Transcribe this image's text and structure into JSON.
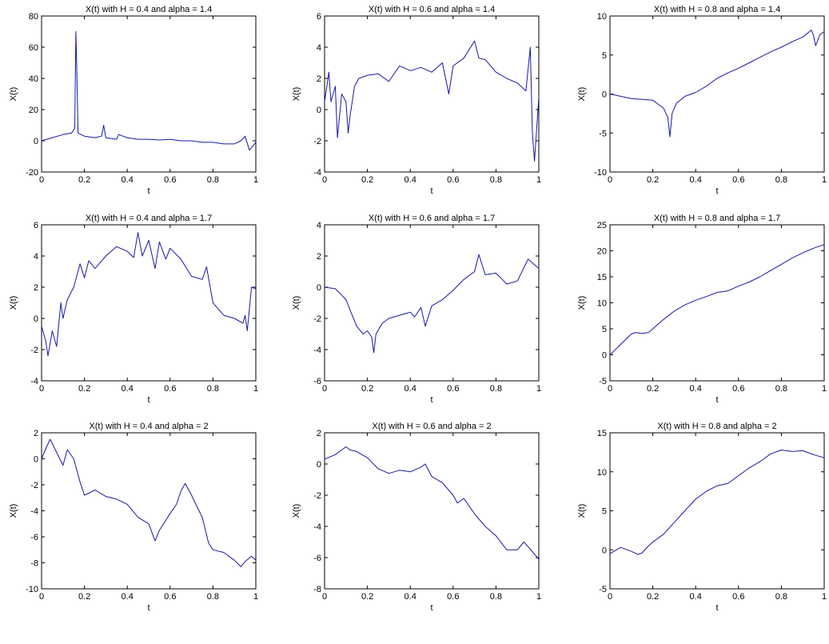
{
  "colors": {
    "line": "#1616a8",
    "axes": "#000000",
    "background": "#ffffff"
  },
  "chart_data": [
    {
      "type": "line",
      "title": "X(t) with H = 0.4 and alpha = 1.4",
      "xlabel": "t",
      "ylabel": "X(t)",
      "xlim": [
        0,
        1
      ],
      "ylim": [
        -20,
        80
      ],
      "xticks": [
        "0",
        "0.2",
        "0.4",
        "0.6",
        "0.8",
        "1"
      ],
      "yticks": [
        "-20",
        "0",
        "20",
        "40",
        "60",
        "80"
      ],
      "grid": false,
      "legend": "none",
      "series": [
        {
          "x": [
            0,
            0.05,
            0.1,
            0.14,
            0.155,
            0.16,
            0.165,
            0.17,
            0.2,
            0.25,
            0.28,
            0.29,
            0.3,
            0.35,
            0.36,
            0.4,
            0.45,
            0.5,
            0.55,
            0.6,
            0.65,
            0.7,
            0.75,
            0.8,
            0.85,
            0.9,
            0.93,
            0.95,
            0.97,
            1.0
          ],
          "y": [
            0,
            2,
            4,
            5,
            8,
            70,
            42,
            5,
            3,
            2,
            3,
            10,
            2,
            1,
            4,
            2,
            1,
            1,
            0.5,
            1,
            0,
            0,
            -1,
            -1,
            -2,
            -2,
            0,
            3,
            -6,
            -1
          ]
        }
      ]
    },
    {
      "type": "line",
      "title": "X(t) with H = 0.6 and alpha = 1.4",
      "xlabel": "t",
      "ylabel": "X(t)",
      "xlim": [
        0,
        1
      ],
      "ylim": [
        -4,
        6
      ],
      "xticks": [
        "0",
        "0.2",
        "0.4",
        "0.6",
        "0.8",
        "1"
      ],
      "yticks": [
        "-4",
        "-2",
        "0",
        "2",
        "4",
        "6"
      ],
      "grid": false,
      "legend": "none",
      "series": [
        {
          "x": [
            0,
            0.02,
            0.03,
            0.05,
            0.06,
            0.08,
            0.1,
            0.11,
            0.12,
            0.14,
            0.16,
            0.2,
            0.25,
            0.3,
            0.35,
            0.4,
            0.45,
            0.5,
            0.55,
            0.58,
            0.6,
            0.65,
            0.7,
            0.72,
            0.75,
            0.8,
            0.85,
            0.9,
            0.94,
            0.96,
            0.97,
            0.98,
            1.0
          ],
          "y": [
            0.5,
            2.4,
            0.5,
            1.5,
            -1.8,
            1,
            0.5,
            -1.5,
            -0.3,
            1.5,
            2,
            2.2,
            2.3,
            1.8,
            2.8,
            2.5,
            2.7,
            2.4,
            3,
            1,
            2.8,
            3.3,
            4.4,
            3.3,
            3.2,
            2.4,
            2,
            1.7,
            1.2,
            4,
            -1.5,
            -3.3,
            0.8
          ]
        }
      ]
    },
    {
      "type": "line",
      "title": "X(t) with H = 0.8 and alpha = 1.4",
      "xlabel": "t",
      "ylabel": "X(t)",
      "xlim": [
        0,
        1
      ],
      "ylim": [
        -10,
        10
      ],
      "xticks": [
        "0",
        "0.2",
        "0.4",
        "0.6",
        "0.8",
        "1"
      ],
      "yticks": [
        "-10",
        "-5",
        "0",
        "5",
        "10"
      ],
      "grid": false,
      "legend": "none",
      "series": [
        {
          "x": [
            0,
            0.1,
            0.2,
            0.25,
            0.27,
            0.28,
            0.29,
            0.31,
            0.35,
            0.4,
            0.45,
            0.5,
            0.55,
            0.6,
            0.65,
            0.7,
            0.75,
            0.8,
            0.85,
            0.9,
            0.94,
            0.95,
            0.96,
            0.98,
            1.0
          ],
          "y": [
            0,
            -0.6,
            -0.8,
            -1.8,
            -3,
            -5.5,
            -2.5,
            -1.2,
            -0.3,
            0.2,
            1,
            2,
            2.7,
            3.3,
            4,
            4.7,
            5.4,
            6,
            6.7,
            7.3,
            8.2,
            7.5,
            6.2,
            7.6,
            8
          ]
        }
      ]
    },
    {
      "type": "line",
      "title": "X(t) with H = 0.4 and alpha = 1.7",
      "xlabel": "t",
      "ylabel": "X(t)",
      "xlim": [
        0,
        1
      ],
      "ylim": [
        -4,
        6
      ],
      "xticks": [
        "0",
        "0.2",
        "0.4",
        "0.6",
        "0.8",
        "1"
      ],
      "yticks": [
        "-4",
        "-2",
        "0",
        "2",
        "4",
        "6"
      ],
      "grid": false,
      "legend": "none",
      "series": [
        {
          "x": [
            0,
            0.02,
            0.03,
            0.05,
            0.07,
            0.09,
            0.1,
            0.12,
            0.15,
            0.18,
            0.2,
            0.22,
            0.25,
            0.3,
            0.35,
            0.4,
            0.43,
            0.45,
            0.47,
            0.5,
            0.53,
            0.55,
            0.58,
            0.6,
            0.65,
            0.7,
            0.75,
            0.77,
            0.8,
            0.85,
            0.9,
            0.94,
            0.95,
            0.96,
            0.98,
            1.0
          ],
          "y": [
            -0.5,
            -1.5,
            -2.4,
            -0.8,
            -1.8,
            1,
            0,
            1.2,
            2,
            3.5,
            2.6,
            3.7,
            3.2,
            4,
            4.6,
            4.3,
            3.9,
            5.5,
            4,
            5,
            3.2,
            4.9,
            3.8,
            4.5,
            3.8,
            2.7,
            2.5,
            3.3,
            1,
            0.2,
            0,
            -0.3,
            0.2,
            -0.8,
            2,
            1.9
          ]
        }
      ]
    },
    {
      "type": "line",
      "title": "X(t) with H = 0.6 and alpha = 1.7",
      "xlabel": "t",
      "ylabel": "X(t)",
      "xlim": [
        0,
        1
      ],
      "ylim": [
        -6,
        4
      ],
      "xticks": [
        "0",
        "0.2",
        "0.4",
        "0.6",
        "0.8",
        "1"
      ],
      "yticks": [
        "-6",
        "-4",
        "-2",
        "0",
        "2",
        "4"
      ],
      "grid": false,
      "legend": "none",
      "series": [
        {
          "x": [
            0,
            0.05,
            0.08,
            0.1,
            0.12,
            0.15,
            0.18,
            0.2,
            0.22,
            0.23,
            0.24,
            0.27,
            0.3,
            0.35,
            0.4,
            0.42,
            0.45,
            0.47,
            0.5,
            0.55,
            0.6,
            0.65,
            0.7,
            0.72,
            0.75,
            0.8,
            0.83,
            0.85,
            0.9,
            0.95,
            1.0
          ],
          "y": [
            0,
            -0.1,
            -0.5,
            -0.8,
            -1.5,
            -2.5,
            -3,
            -2.8,
            -3.2,
            -4.2,
            -3,
            -2.3,
            -2,
            -1.8,
            -1.6,
            -1.9,
            -1.3,
            -2.5,
            -1.2,
            -0.8,
            -0.2,
            0.5,
            1,
            2.1,
            0.8,
            0.9,
            0.5,
            0.2,
            0.4,
            1.8,
            1.2
          ]
        }
      ]
    },
    {
      "type": "line",
      "title": "X(t) with H = 0.8 and alpha = 1.7",
      "xlabel": "t",
      "ylabel": "X(t)",
      "xlim": [
        0,
        1
      ],
      "ylim": [
        -5,
        25
      ],
      "xticks": [
        "0",
        "0.2",
        "0.4",
        "0.6",
        "0.8",
        "1"
      ],
      "yticks": [
        "-5",
        "0",
        "5",
        "10",
        "15",
        "20",
        "25"
      ],
      "grid": false,
      "legend": "none",
      "series": [
        {
          "x": [
            0,
            0.02,
            0.05,
            0.1,
            0.12,
            0.15,
            0.18,
            0.2,
            0.25,
            0.3,
            0.35,
            0.4,
            0.45,
            0.5,
            0.55,
            0.6,
            0.65,
            0.7,
            0.75,
            0.8,
            0.85,
            0.9,
            0.95,
            1.0
          ],
          "y": [
            0,
            0.8,
            2,
            4,
            4.3,
            4.1,
            4.3,
            5,
            6.8,
            8.4,
            9.6,
            10.5,
            11.2,
            12,
            12.3,
            13.2,
            14,
            15,
            16.2,
            17.4,
            18.6,
            19.6,
            20.5,
            21.2
          ]
        }
      ]
    },
    {
      "type": "line",
      "title": "X(t) with H = 0.4 and alpha = 2",
      "xlabel": "t",
      "ylabel": "X(t)",
      "xlim": [
        0,
        1
      ],
      "ylim": [
        -10,
        2
      ],
      "xticks": [
        "0",
        "0.2",
        "0.4",
        "0.6",
        "0.8",
        "1"
      ],
      "yticks": [
        "-10",
        "-8",
        "-6",
        "-4",
        "-2",
        "0",
        "2"
      ],
      "grid": false,
      "legend": "none",
      "series": [
        {
          "x": [
            0,
            0.02,
            0.04,
            0.07,
            0.1,
            0.12,
            0.15,
            0.18,
            0.2,
            0.25,
            0.3,
            0.35,
            0.4,
            0.45,
            0.5,
            0.53,
            0.55,
            0.6,
            0.63,
            0.65,
            0.67,
            0.7,
            0.72,
            0.75,
            0.78,
            0.8,
            0.85,
            0.9,
            0.93,
            0.95,
            0.98,
            1.0
          ],
          "y": [
            0,
            0.8,
            1.5,
            0.5,
            -0.5,
            0.7,
            0,
            -1.8,
            -2.8,
            -2.4,
            -2.9,
            -3.1,
            -3.5,
            -4.5,
            -5,
            -6.3,
            -5.5,
            -4.2,
            -3.5,
            -2.5,
            -1.9,
            -2.8,
            -3.5,
            -4.5,
            -6.5,
            -7,
            -7.2,
            -7.8,
            -8.3,
            -7.9,
            -7.5,
            -7.8
          ]
        }
      ]
    },
    {
      "type": "line",
      "title": "X(t) with H = 0.6 and alpha = 2",
      "xlabel": "t",
      "ylabel": "X(t)",
      "xlim": [
        0,
        1
      ],
      "ylim": [
        -8,
        2
      ],
      "xticks": [
        "0",
        "0.2",
        "0.4",
        "0.6",
        "0.8",
        "1"
      ],
      "yticks": [
        "-8",
        "-6",
        "-4",
        "-2",
        "0",
        "2"
      ],
      "grid": false,
      "legend": "none",
      "series": [
        {
          "x": [
            0,
            0.05,
            0.1,
            0.12,
            0.15,
            0.2,
            0.25,
            0.3,
            0.35,
            0.4,
            0.45,
            0.47,
            0.5,
            0.55,
            0.6,
            0.62,
            0.65,
            0.7,
            0.75,
            0.8,
            0.85,
            0.9,
            0.93,
            0.95,
            1.0
          ],
          "y": [
            0.3,
            0.6,
            1.1,
            0.9,
            0.8,
            0.4,
            -0.3,
            -0.6,
            -0.4,
            -0.5,
            -0.2,
            0,
            -0.8,
            -1.2,
            -2,
            -2.5,
            -2.2,
            -3.2,
            -4,
            -4.6,
            -5.5,
            -5.5,
            -5,
            -5.3,
            -6.1
          ]
        }
      ]
    },
    {
      "type": "line",
      "title": "X(t) with H = 0.8 and alpha = 2",
      "xlabel": "t",
      "ylabel": "X(t)",
      "xlim": [
        0,
        1
      ],
      "ylim": [
        -5,
        15
      ],
      "xticks": [
        "0",
        "0.2",
        "0.4",
        "0.6",
        "0.8",
        "1"
      ],
      "yticks": [
        "-5",
        "0",
        "5",
        "10",
        "15"
      ],
      "grid": false,
      "legend": "none",
      "series": [
        {
          "x": [
            0,
            0.03,
            0.05,
            0.1,
            0.13,
            0.15,
            0.18,
            0.2,
            0.25,
            0.3,
            0.35,
            0.4,
            0.45,
            0.5,
            0.55,
            0.6,
            0.65,
            0.7,
            0.75,
            0.8,
            0.85,
            0.9,
            0.95,
            1.0
          ],
          "y": [
            -0.5,
            0,
            0.3,
            -0.2,
            -0.6,
            -0.4,
            0.5,
            1,
            2,
            3.5,
            5,
            6.5,
            7.5,
            8.2,
            8.5,
            9.5,
            10.5,
            11.3,
            12.3,
            12.8,
            12.6,
            12.7,
            12.2,
            11.8
          ]
        }
      ]
    }
  ]
}
